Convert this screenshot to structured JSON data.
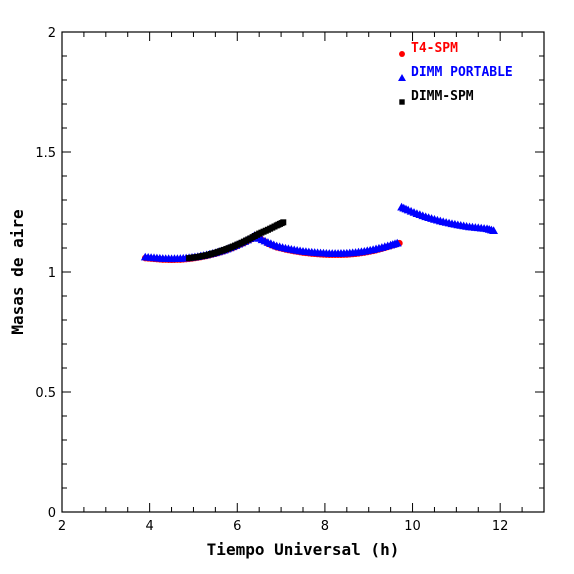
{
  "chart_data": {
    "type": "scatter",
    "title": "",
    "xlabel": "Tiempo Universal (h)",
    "ylabel": "Masas de aire",
    "xlim": [
      2,
      13
    ],
    "ylim": [
      0,
      2
    ],
    "xticks": [
      2,
      4,
      6,
      8,
      10,
      12
    ],
    "yticks": [
      0,
      0.5,
      1,
      1.5,
      2
    ],
    "xtick_labels": [
      "2",
      "4",
      "6",
      "8",
      "10",
      "12"
    ],
    "ytick_labels": [
      "0",
      "0.5",
      "1",
      "1.5",
      "2"
    ],
    "legend_position": "top-right",
    "series": [
      {
        "name": "T4-SPM",
        "color": "#ff0000",
        "marker": "circle",
        "segments": [
          [
            [
              3.9,
              1.058
            ],
            [
              4.1,
              1.055
            ],
            [
              4.3,
              1.052
            ],
            [
              4.5,
              1.051
            ],
            [
              4.7,
              1.052
            ],
            [
              4.9,
              1.055
            ],
            [
              5.1,
              1.06
            ],
            [
              5.3,
              1.067
            ],
            [
              5.5,
              1.076
            ],
            [
              5.7,
              1.087
            ],
            [
              5.9,
              1.101
            ],
            [
              6.1,
              1.117
            ],
            [
              6.3,
              1.135
            ],
            [
              6.45,
              1.15
            ]
          ],
          [
            [
              6.45,
              1.15
            ],
            [
              6.7,
              1.118
            ],
            [
              6.9,
              1.103
            ],
            [
              7.1,
              1.094
            ],
            [
              7.3,
              1.087
            ],
            [
              7.5,
              1.081
            ],
            [
              7.7,
              1.077
            ],
            [
              7.9,
              1.074
            ],
            [
              8.1,
              1.072
            ],
            [
              8.3,
              1.072
            ],
            [
              8.5,
              1.073
            ],
            [
              8.7,
              1.076
            ],
            [
              8.9,
              1.081
            ],
            [
              9.1,
              1.088
            ],
            [
              9.3,
              1.097
            ],
            [
              9.5,
              1.108
            ],
            [
              9.7,
              1.12
            ]
          ]
        ]
      },
      {
        "name": "DIMM PORTABLE",
        "color": "#0000ff",
        "marker": "triangle",
        "segments": [
          [
            [
              3.9,
              1.062
            ],
            [
              4.1,
              1.059
            ],
            [
              4.3,
              1.056
            ],
            [
              4.5,
              1.055
            ],
            [
              4.7,
              1.056
            ],
            [
              4.9,
              1.059
            ],
            [
              5.1,
              1.064
            ],
            [
              5.3,
              1.071
            ],
            [
              5.5,
              1.08
            ],
            [
              5.7,
              1.091
            ],
            [
              5.9,
              1.105
            ],
            [
              6.1,
              1.121
            ],
            [
              6.3,
              1.139
            ],
            [
              6.4,
              1.152
            ]
          ],
          [
            [
              6.5,
              1.14
            ],
            [
              6.7,
              1.123
            ],
            [
              6.9,
              1.108
            ],
            [
              7.1,
              1.099
            ],
            [
              7.3,
              1.092
            ],
            [
              7.5,
              1.086
            ],
            [
              7.7,
              1.082
            ],
            [
              7.9,
              1.079
            ],
            [
              8.1,
              1.077
            ],
            [
              8.3,
              1.077
            ],
            [
              8.5,
              1.078
            ],
            [
              8.7,
              1.081
            ],
            [
              8.9,
              1.086
            ],
            [
              9.1,
              1.093
            ],
            [
              9.3,
              1.102
            ],
            [
              9.5,
              1.112
            ],
            [
              9.65,
              1.12
            ]
          ],
          [
            [
              9.75,
              1.27
            ],
            [
              9.9,
              1.258
            ],
            [
              10.1,
              1.243
            ],
            [
              10.3,
              1.23
            ],
            [
              10.5,
              1.219
            ],
            [
              10.7,
              1.209
            ],
            [
              10.9,
              1.201
            ],
            [
              11.1,
              1.194
            ],
            [
              11.3,
              1.188
            ],
            [
              11.5,
              1.184
            ],
            [
              11.7,
              1.18
            ],
            [
              11.85,
              1.172
            ]
          ]
        ]
      },
      {
        "name": "DIMM-SPM",
        "color": "#000000",
        "marker": "square",
        "segments": [
          [
            [
              4.9,
              1.058
            ],
            [
              5.1,
              1.063
            ],
            [
              5.3,
              1.07
            ],
            [
              5.5,
              1.08
            ],
            [
              5.7,
              1.092
            ],
            [
              5.9,
              1.106
            ],
            [
              6.1,
              1.122
            ],
            [
              6.3,
              1.14
            ],
            [
              6.5,
              1.16
            ],
            [
              6.7,
              1.176
            ],
            [
              6.9,
              1.194
            ],
            [
              7.05,
              1.207
            ]
          ]
        ]
      }
    ]
  }
}
